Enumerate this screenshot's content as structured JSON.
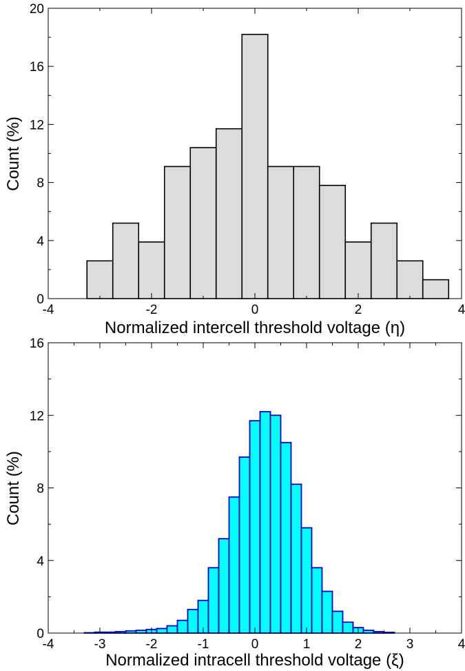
{
  "chart_data": [
    {
      "type": "bar",
      "title": "",
      "xlabel": "Normalized intercell threshold voltage (η)",
      "ylabel": "Count (%)",
      "xlim": [
        -4,
        4
      ],
      "ylim": [
        0,
        20
      ],
      "xticks": [
        "-4",
        "-2",
        "0",
        "2",
        "4"
      ],
      "yticks": [
        "0",
        "4",
        "8",
        "12",
        "16",
        "20"
      ],
      "bin_width": 0.5,
      "bin_left_edges": [
        -3.25,
        -2.75,
        -2.25,
        -1.75,
        -1.25,
        -0.75,
        -0.25,
        0.25,
        0.75,
        1.25,
        1.75,
        2.25,
        2.75,
        3.25
      ],
      "values": [
        2.6,
        5.2,
        3.9,
        9.1,
        10.4,
        11.7,
        18.2,
        9.1,
        9.1,
        7.8,
        3.9,
        5.2,
        2.6,
        1.3
      ],
      "fill_color": "#dcdcdc",
      "edge_color": "#000000",
      "grid": false
    },
    {
      "type": "bar",
      "title": "",
      "xlabel": "Normalized intracell threshold voltage (ξ)",
      "ylabel": "Count (%)",
      "xlim": [
        -4,
        4
      ],
      "ylim": [
        0,
        16
      ],
      "xticks": [
        "-4",
        "-3",
        "-2",
        "-1",
        "0",
        "1",
        "2",
        "3",
        "4"
      ],
      "yticks": [
        "0",
        "4",
        "8",
        "12",
        "16"
      ],
      "bin_width": 0.2,
      "bin_left_edges": [
        -3.3,
        -3.1,
        -2.9,
        -2.7,
        -2.5,
        -2.3,
        -2.1,
        -1.9,
        -1.7,
        -1.5,
        -1.3,
        -1.1,
        -0.9,
        -0.7,
        -0.5,
        -0.3,
        -0.1,
        0.1,
        0.3,
        0.5,
        0.7,
        0.9,
        1.1,
        1.3,
        1.5,
        1.7,
        1.9,
        2.1,
        2.3,
        2.5
      ],
      "values": [
        0.02,
        0.05,
        0.05,
        0.08,
        0.12,
        0.15,
        0.2,
        0.25,
        0.4,
        0.7,
        1.3,
        1.8,
        3.6,
        5.2,
        7.5,
        9.7,
        11.7,
        12.2,
        12.0,
        10.5,
        8.2,
        5.8,
        3.6,
        2.3,
        1.2,
        0.6,
        0.3,
        0.15,
        0.08,
        0.04
      ],
      "fill_color": "#00ffff",
      "edge_color": "#0000cc",
      "grid": false
    }
  ]
}
